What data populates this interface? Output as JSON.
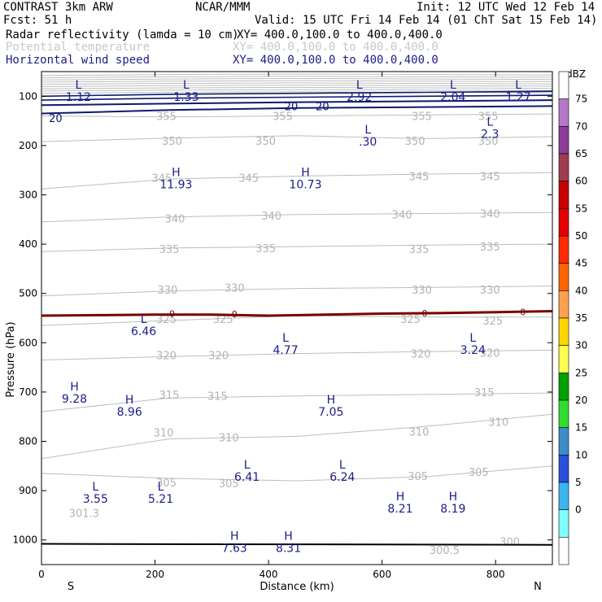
{
  "header": {
    "model": "CONTRAST  3km ARW",
    "center": "NCAR/MMM",
    "init": "Init: 12 UTC Wed 12 Feb 14",
    "fcst": "Fcst:   51 h",
    "valid": "Valid: 15 UTC Fri 14 Feb 14 (01 ChT Sat 15 Feb 14)",
    "field1_name": "Radar reflectivity (lamda = 10 cm)",
    "field1_xy": "XY= 400.0,100.0 to 400.0,400.0",
    "field2_name": "Potential temperature",
    "field2_xy": "XY= 400.0,100.0 to 400.0,400.0",
    "field3_name": "Horizontal wind speed",
    "field3_xy": "XY= 400.0,100.0 to 400.0,400.0",
    "colors": {
      "field1": "#000000",
      "field2": "#c8c8c8",
      "field3": "#1c1c8a"
    }
  },
  "chart_data": {
    "type": "cross-section",
    "xlabel": "Distance (km)",
    "ylabel": "Pressure (hPa)",
    "xlim": [
      0,
      900
    ],
    "ylim": [
      1050,
      50
    ],
    "x_ticks": [
      0,
      200,
      400,
      600,
      800
    ],
    "y_ticks": [
      100,
      200,
      300,
      400,
      500,
      600,
      700,
      800,
      900,
      1000
    ],
    "x_end_labels": {
      "left": "S",
      "right": "N"
    },
    "theta_isentropes": [
      {
        "label": "355",
        "p": [
          140,
          142,
          140,
          138,
          136
        ]
      },
      {
        "label": "350",
        "p": [
          192,
          185,
          180,
          186,
          182
        ]
      },
      {
        "label": "345",
        "p": [
          288,
          268,
          262,
          258,
          255
        ]
      },
      {
        "label": "340",
        "p": [
          355,
          345,
          340,
          338,
          336
        ]
      },
      {
        "label": "335",
        "p": [
          415,
          408,
          405,
          402,
          400
        ]
      },
      {
        "label": "330",
        "p": [
          505,
          495,
          490,
          488,
          485
        ]
      },
      {
        "label": "325",
        "p": [
          565,
          555,
          545,
          548,
          548
        ]
      },
      {
        "label": "320",
        "p": [
          635,
          628,
          622,
          618,
          615
        ]
      },
      {
        "label": "315",
        "p": [
          740,
          712,
          708,
          705,
          702
        ]
      },
      {
        "label": "310",
        "p": [
          835,
          795,
          790,
          770,
          745
        ]
      },
      {
        "label": "305",
        "p": [
          865,
          875,
          880,
          872,
          850
        ]
      }
    ],
    "theta_x": [
      0,
      225,
      450,
      675,
      900
    ],
    "theta_labels": [
      {
        "t": "355",
        "x": 220,
        "p": 140
      },
      {
        "t": "355",
        "x": 425,
        "p": 140
      },
      {
        "t": "355",
        "x": 670,
        "p": 140
      },
      {
        "t": "355",
        "x": 787,
        "p": 140
      },
      {
        "t": "350",
        "x": 230,
        "p": 190
      },
      {
        "t": "350",
        "x": 395,
        "p": 190
      },
      {
        "t": "350",
        "x": 658,
        "p": 190
      },
      {
        "t": "350",
        "x": 787,
        "p": 190
      },
      {
        "t": "345",
        "x": 212,
        "p": 265
      },
      {
        "t": "345",
        "x": 365,
        "p": 265
      },
      {
        "t": "345",
        "x": 665,
        "p": 262
      },
      {
        "t": "345",
        "x": 790,
        "p": 262
      },
      {
        "t": "340",
        "x": 235,
        "p": 348
      },
      {
        "t": "340",
        "x": 405,
        "p": 342
      },
      {
        "t": "340",
        "x": 635,
        "p": 340
      },
      {
        "t": "340",
        "x": 790,
        "p": 338
      },
      {
        "t": "335",
        "x": 225,
        "p": 410
      },
      {
        "t": "335",
        "x": 395,
        "p": 408
      },
      {
        "t": "335",
        "x": 665,
        "p": 410
      },
      {
        "t": "335",
        "x": 790,
        "p": 405
      },
      {
        "t": "330",
        "x": 222,
        "p": 492
      },
      {
        "t": "330",
        "x": 340,
        "p": 488
      },
      {
        "t": "330",
        "x": 670,
        "p": 492
      },
      {
        "t": "330",
        "x": 790,
        "p": 492
      },
      {
        "t": "325",
        "x": 220,
        "p": 552
      },
      {
        "t": "325",
        "x": 320,
        "p": 552
      },
      {
        "t": "325",
        "x": 650,
        "p": 552
      },
      {
        "t": "325",
        "x": 795,
        "p": 555
      },
      {
        "t": "320",
        "x": 220,
        "p": 625
      },
      {
        "t": "320",
        "x": 312,
        "p": 625
      },
      {
        "t": "320",
        "x": 668,
        "p": 622
      },
      {
        "t": "320",
        "x": 790,
        "p": 620
      },
      {
        "t": "315",
        "x": 225,
        "p": 705
      },
      {
        "t": "315",
        "x": 310,
        "p": 708
      },
      {
        "t": "315",
        "x": 780,
        "p": 700
      },
      {
        "t": "310",
        "x": 215,
        "p": 782
      },
      {
        "t": "310",
        "x": 330,
        "p": 792
      },
      {
        "t": "310",
        "x": 665,
        "p": 780
      },
      {
        "t": "310",
        "x": 805,
        "p": 760
      },
      {
        "t": "305",
        "x": 220,
        "p": 883
      },
      {
        "t": "305",
        "x": 330,
        "p": 885
      },
      {
        "t": "305",
        "x": 663,
        "p": 870
      },
      {
        "t": "305",
        "x": 770,
        "p": 862
      },
      {
        "t": "301.3",
        "x": 75,
        "p": 945
      },
      {
        "t": "300.5",
        "x": 710,
        "p": 1020
      },
      {
        "t": "300",
        "x": 825,
        "p": 1003
      }
    ],
    "wind_contours": [
      {
        "label": "20",
        "x": [
          0,
          225,
          450,
          675,
          900
        ],
        "p": [
          118,
          115,
          112,
          110,
          108
        ]
      },
      {
        "label": "20",
        "x": [
          0,
          225,
          450,
          675,
          900
        ],
        "p": [
          135,
          128,
          124,
          122,
          120
        ]
      },
      {
        "label": "",
        "x": [
          0,
          225,
          450,
          675,
          900
        ],
        "p": [
          100,
          96,
          94,
          92,
          90
        ]
      },
      {
        "label": "",
        "x": [
          0,
          225,
          450,
          675,
          900
        ],
        "p": [
          108,
          104,
          102,
          100,
          98
        ]
      }
    ],
    "wind_labels": [
      {
        "t": "20",
        "x": 25,
        "p": 144
      },
      {
        "t": "20",
        "x": 440,
        "p": 120
      },
      {
        "t": "20",
        "x": 495,
        "p": 120
      }
    ],
    "reflectivity_zero_contour": {
      "x": [
        0,
        100,
        200,
        300,
        400,
        500,
        600,
        700,
        800,
        900
      ],
      "p": [
        545,
        544,
        543,
        543,
        545,
        543,
        541,
        540,
        538,
        536
      ],
      "labels": [
        {
          "t": "0",
          "x": 230,
          "p": 541
        },
        {
          "t": "0",
          "x": 340,
          "p": 542
        },
        {
          "t": "0",
          "x": 675,
          "p": 540
        },
        {
          "t": "0",
          "x": 848,
          "p": 538
        }
      ]
    },
    "surface_line_p": 1008,
    "extrema": [
      {
        "kind": "L",
        "value": "1.12",
        "x": 65,
        "p": 85
      },
      {
        "kind": "L",
        "value": "1.33",
        "x": 255,
        "p": 85
      },
      {
        "kind": "L",
        "value": "2.92",
        "x": 560,
        "p": 85
      },
      {
        "kind": "L",
        "value": "2.04",
        "x": 725,
        "p": 85
      },
      {
        "kind": "L",
        "value": "1.27",
        "x": 840,
        "p": 85
      },
      {
        "kind": "L",
        "value": ".30",
        "x": 575,
        "p": 175
      },
      {
        "kind": "L",
        "value": "2.3",
        "x": 790,
        "p": 160
      },
      {
        "kind": "H",
        "value": "11.93",
        "x": 237,
        "p": 262
      },
      {
        "kind": "H",
        "value": "10.73",
        "x": 465,
        "p": 262
      },
      {
        "kind": "L",
        "value": "6.46",
        "x": 180,
        "p": 560
      },
      {
        "kind": "L",
        "value": "4.77",
        "x": 430,
        "p": 598
      },
      {
        "kind": "L",
        "value": "3.24",
        "x": 760,
        "p": 598
      },
      {
        "kind": "H",
        "value": "9.28",
        "x": 58,
        "p": 697
      },
      {
        "kind": "H",
        "value": "8.96",
        "x": 155,
        "p": 723
      },
      {
        "kind": "H",
        "value": "7.05",
        "x": 510,
        "p": 723
      },
      {
        "kind": "L",
        "value": "6.41",
        "x": 362,
        "p": 855
      },
      {
        "kind": "L",
        "value": "6.24",
        "x": 530,
        "p": 855
      },
      {
        "kind": "L",
        "value": "3.55",
        "x": 95,
        "p": 900
      },
      {
        "kind": "L",
        "value": "5.21",
        "x": 210,
        "p": 900
      },
      {
        "kind": "H",
        "value": "8.21",
        "x": 632,
        "p": 920
      },
      {
        "kind": "H",
        "value": "8.19",
        "x": 725,
        "p": 920
      },
      {
        "kind": "H",
        "value": "7.63",
        "x": 340,
        "p": 1000
      },
      {
        "kind": "H",
        "value": "8.31",
        "x": 435,
        "p": 1000
      }
    ],
    "colorbar": {
      "title": "dBZ",
      "levels": [
        "75",
        "70",
        "65",
        "60",
        "55",
        "50",
        "45",
        "40",
        "35",
        "30",
        "25",
        "20",
        "15",
        "10",
        "5",
        "0"
      ],
      "colors": [
        "#ffffff",
        "#b478c8",
        "#8c3c96",
        "#a03c50",
        "#c80000",
        "#e60000",
        "#ff2a00",
        "#ff6400",
        "#ffa050",
        "#ffd700",
        "#ffff50",
        "#00a000",
        "#32dc32",
        "#3c8cc8",
        "#2850dc",
        "#3cb4f0",
        "#80ffff",
        "#ffffff"
      ]
    }
  }
}
